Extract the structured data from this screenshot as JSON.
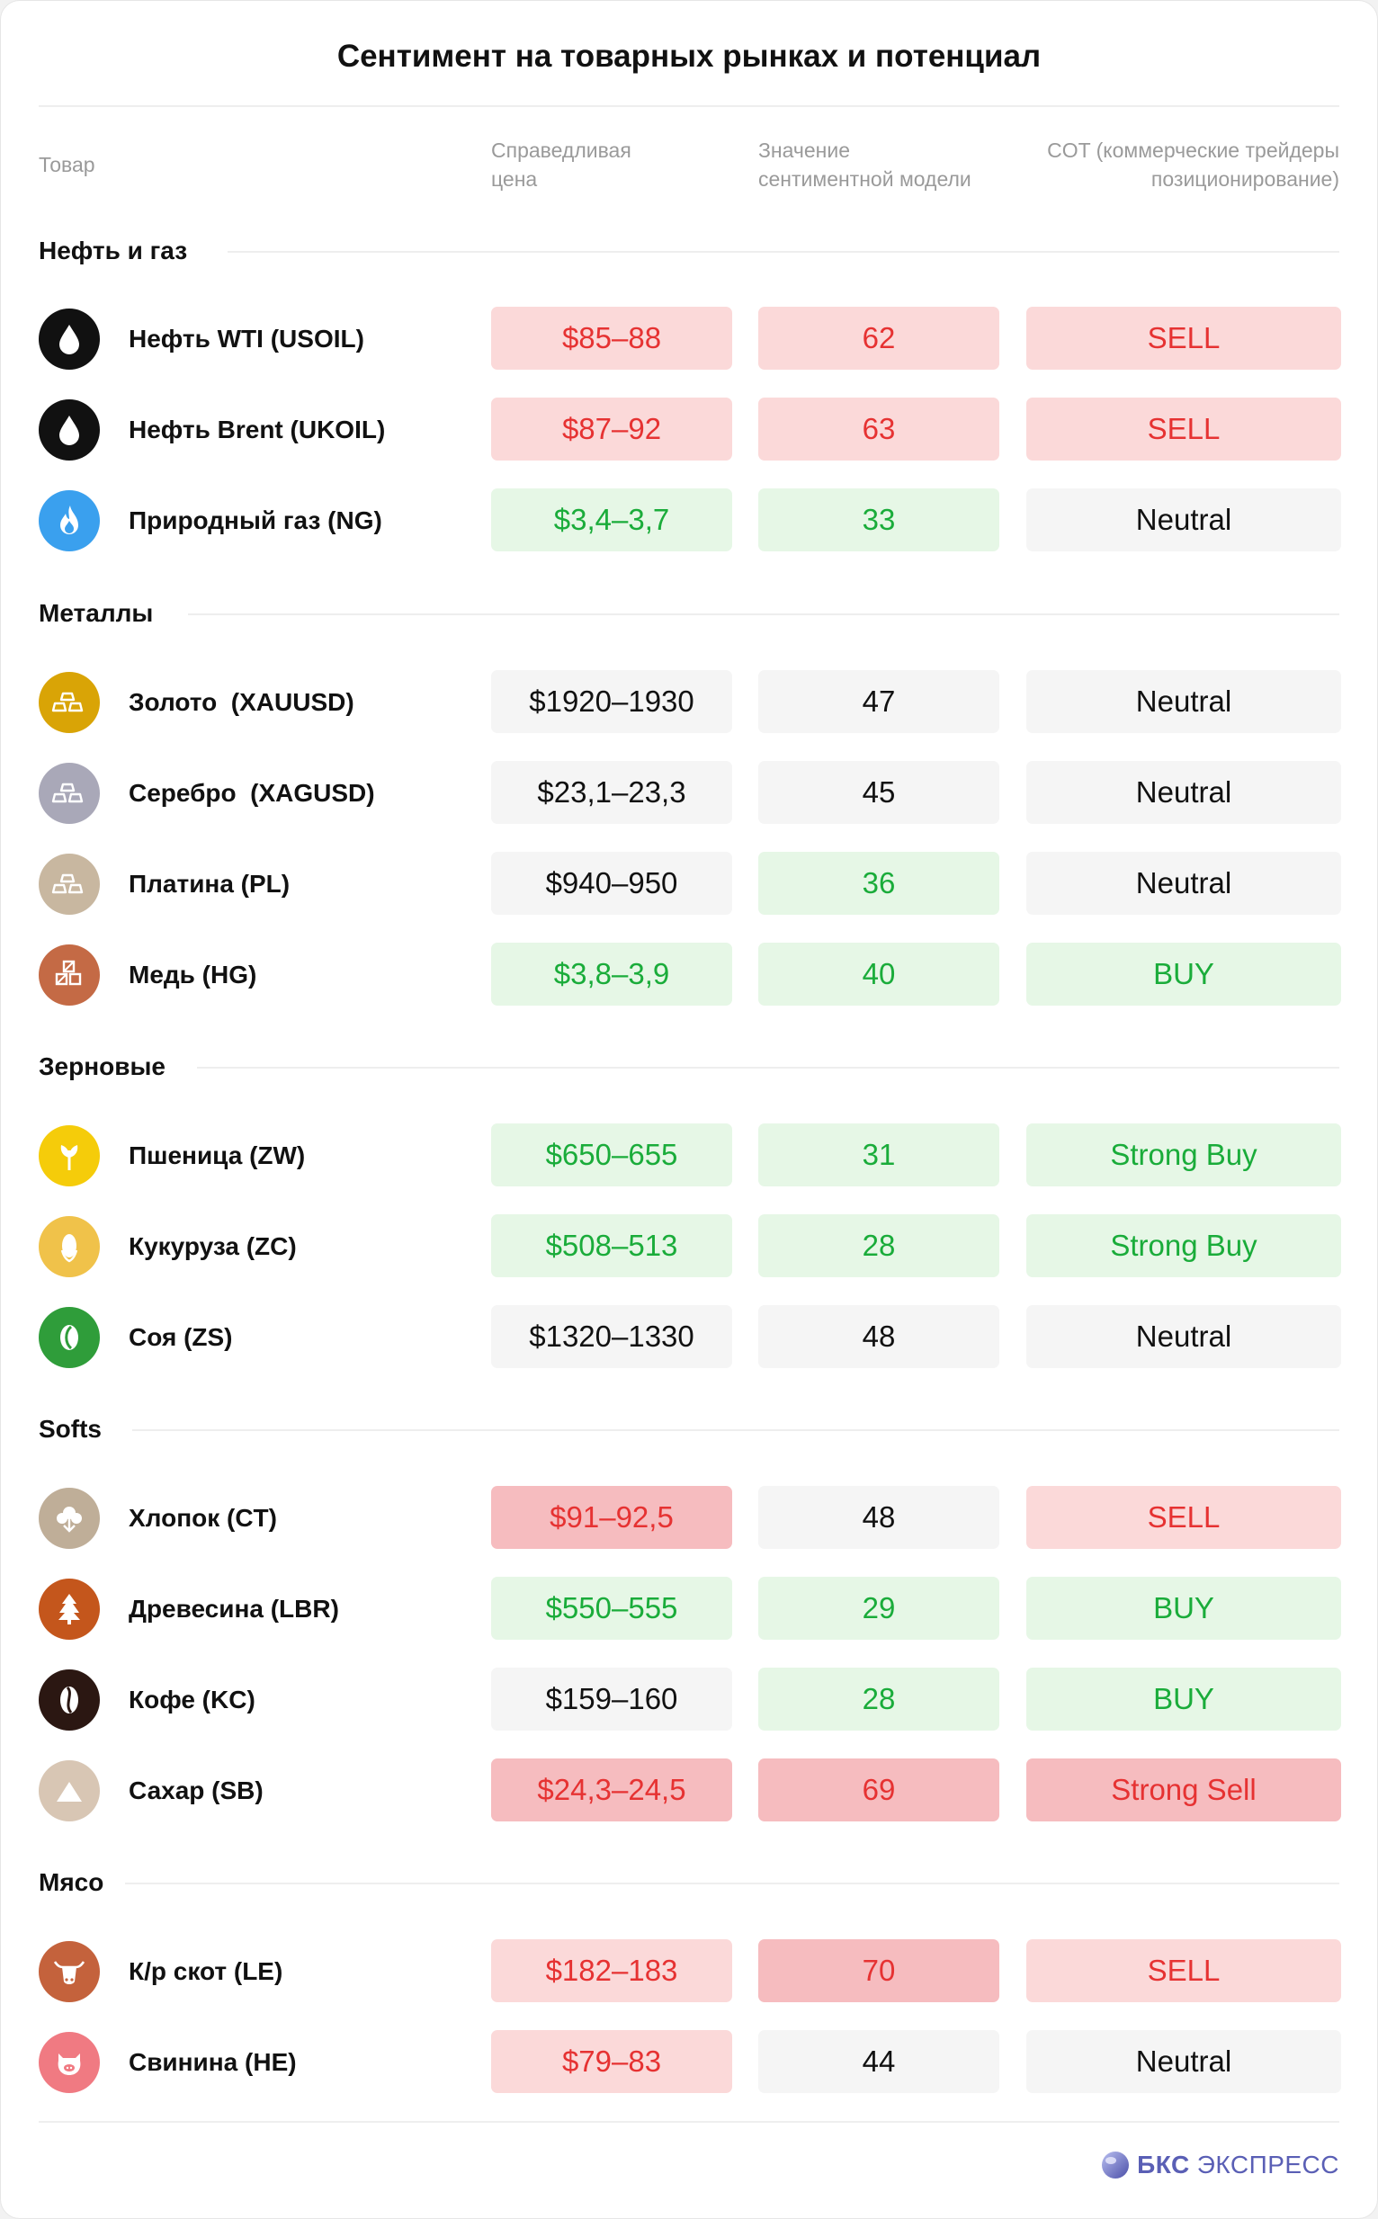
{
  "title": "Сентимент на товарных рынках и потенциал",
  "headers": {
    "product": "Товар",
    "price_l1": "Справедливая",
    "price_l2": "цена",
    "sent_l1": "Значение",
    "sent_l2": "сентиментной модели",
    "cot_l1": "COT (коммерческие трейдеры",
    "cot_l2": "позиционирование)"
  },
  "sections": {
    "oil": "Нефть и газ",
    "metals": "Металлы",
    "grains": "Зерновые",
    "softs": "Softs",
    "meat": "Мясо"
  },
  "rows": [
    {
      "name": "Нефть WTI (USOIL)",
      "icon": "oil-drop-icon",
      "price": "$85–88",
      "price_tone": "red",
      "sent": "62",
      "sent_tone": "red",
      "cot": "SELL",
      "cot_tone": "red"
    },
    {
      "name": "Нефть Brent (UKOIL)",
      "icon": "oil-drop-icon",
      "price": "$87–92",
      "price_tone": "red",
      "sent": "63",
      "sent_tone": "red",
      "cot": "SELL",
      "cot_tone": "red"
    },
    {
      "name": "Природный газ (NG)",
      "icon": "flame-icon",
      "price": "$3,4–3,7",
      "price_tone": "green",
      "sent": "33",
      "sent_tone": "green",
      "cot": "Neutral",
      "cot_tone": "neutral"
    },
    {
      "name": "Золото  (XAUUSD)",
      "icon": "gold-bars-icon",
      "price": "$1920–1930",
      "price_tone": "neutral",
      "sent": "47",
      "sent_tone": "neutral",
      "cot": "Neutral",
      "cot_tone": "neutral"
    },
    {
      "name": "Серебро  (XAGUSD)",
      "icon": "silver-bars-icon",
      "price": "$23,1–23,3",
      "price_tone": "neutral",
      "sent": "45",
      "sent_tone": "neutral",
      "cot": "Neutral",
      "cot_tone": "neutral"
    },
    {
      "name": "Платина (PL)",
      "icon": "platinum-bars-icon",
      "price": "$940–950",
      "price_tone": "neutral",
      "sent": "36",
      "sent_tone": "green",
      "cot": "Neutral",
      "cot_tone": "neutral"
    },
    {
      "name": "Медь (HG)",
      "icon": "copper-cubes-icon",
      "price": "$3,8–3,9",
      "price_tone": "green",
      "sent": "40",
      "sent_tone": "green",
      "cot": "BUY",
      "cot_tone": "green"
    },
    {
      "name": "Пшеница (ZW)",
      "icon": "wheat-icon",
      "price": "$650–655",
      "price_tone": "green",
      "sent": "31",
      "sent_tone": "green",
      "cot": "Strong Buy",
      "cot_tone": "green"
    },
    {
      "name": "Кукуруза (ZC)",
      "icon": "corn-icon",
      "price": "$508–513",
      "price_tone": "green",
      "sent": "28",
      "sent_tone": "green",
      "cot": "Strong Buy",
      "cot_tone": "green"
    },
    {
      "name": "Соя (ZS)",
      "icon": "soy-bean-icon",
      "price": "$1320–1330",
      "price_tone": "neutral",
      "sent": "48",
      "sent_tone": "neutral",
      "cot": "Neutral",
      "cot_tone": "neutral"
    },
    {
      "name": "Хлопок (CT)",
      "icon": "cotton-icon",
      "price": "$91–92,5",
      "price_tone": "red2",
      "sent": "48",
      "sent_tone": "neutral",
      "cot": "SELL",
      "cot_tone": "red"
    },
    {
      "name": "Древесина (LBR)",
      "icon": "tree-icon",
      "price": "$550–555",
      "price_tone": "green",
      "sent": "29",
      "sent_tone": "green",
      "cot": "BUY",
      "cot_tone": "green"
    },
    {
      "name": "Кофе (KC)",
      "icon": "coffee-bean-icon",
      "price": "$159–160",
      "price_tone": "neutral",
      "sent": "28",
      "sent_tone": "green",
      "cot": "BUY",
      "cot_tone": "green"
    },
    {
      "name": "Сахар (SB)",
      "icon": "sugar-icon",
      "price": "$24,3–24,5",
      "price_tone": "red2",
      "sent": "69",
      "sent_tone": "red2",
      "cot": "Strong Sell",
      "cot_tone": "red2"
    },
    {
      "name": "К/р скот (LE)",
      "icon": "cow-icon",
      "price": "$182–183",
      "price_tone": "red",
      "sent": "70",
      "sent_tone": "red2",
      "cot": "SELL",
      "cot_tone": "red"
    },
    {
      "name": "Свинина (HE)",
      "icon": "pig-icon",
      "price": "$79–83",
      "price_tone": "red",
      "sent": "44",
      "sent_tone": "neutral",
      "cot": "Neutral",
      "cot_tone": "neutral"
    }
  ],
  "colors": {
    "green_text": "#1aac3a",
    "green_bg": "#e6f7e6",
    "red_text": "#e63232",
    "red_bg": "#fbd9d9",
    "red_bg_strong": "#f6bcbf",
    "neutral_bg": "#f5f5f5",
    "oil": "#111111",
    "gas": "#3aa0ee",
    "gold": "#d9a406",
    "silver": "#a9a8b8",
    "platinum": "#c8b7a0",
    "copper": "#c46a45",
    "wheat": "#f5cc0a",
    "corn": "#f0c24a",
    "soy": "#2f9d3a",
    "cotton": "#bfae98",
    "wood": "#c4561c",
    "coffee": "#2b1712",
    "sugar": "#d8c6b4",
    "cattle": "#c4623c",
    "pork": "#f07a82"
  },
  "logo": {
    "brand": "БКС",
    "word": "ЭКСПРЕСС"
  }
}
